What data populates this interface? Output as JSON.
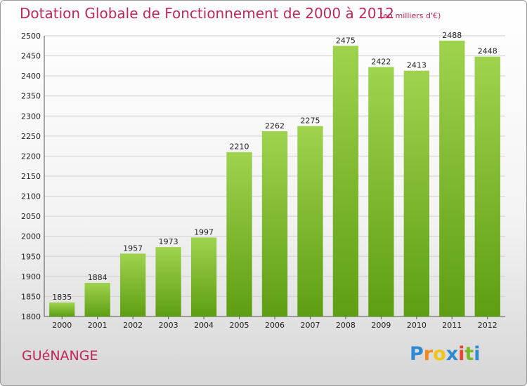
{
  "title": "Dotation Globale de Fonctionnement de 2000 à 2012",
  "unit_note": "(en milliers d'€)",
  "town": "GUéNANGE",
  "logo": {
    "letters": [
      "P",
      "r",
      "o",
      "x",
      "i",
      "t",
      "i"
    ],
    "colors": [
      "#2e8bd1",
      "#f08a1c",
      "#f0c419",
      "#2e8bd1",
      "#e8452c",
      "#7ab828",
      "#2e8bd1"
    ]
  },
  "colors": {
    "bar_top": "#9fd34e",
    "bar_bottom": "#5e9e12",
    "accent": "#c0265b"
  },
  "chart_data": {
    "type": "bar",
    "title": "Dotation Globale de Fonctionnement de 2000 à 2012",
    "subtitle": "(en milliers d'€)",
    "categories": [
      "2000",
      "2001",
      "2002",
      "2003",
      "2004",
      "2005",
      "2006",
      "2007",
      "2008",
      "2009",
      "2010",
      "2011",
      "2012"
    ],
    "values": [
      1835,
      1884,
      1957,
      1973,
      1997,
      2210,
      2262,
      2275,
      2475,
      2422,
      2413,
      2488,
      2448
    ],
    "ylim": [
      1800,
      2500
    ],
    "yticks": [
      1800,
      1850,
      1900,
      1950,
      2000,
      2050,
      2100,
      2150,
      2200,
      2250,
      2300,
      2350,
      2400,
      2450,
      2500
    ],
    "grid": true,
    "xlabel": "",
    "ylabel": ""
  }
}
